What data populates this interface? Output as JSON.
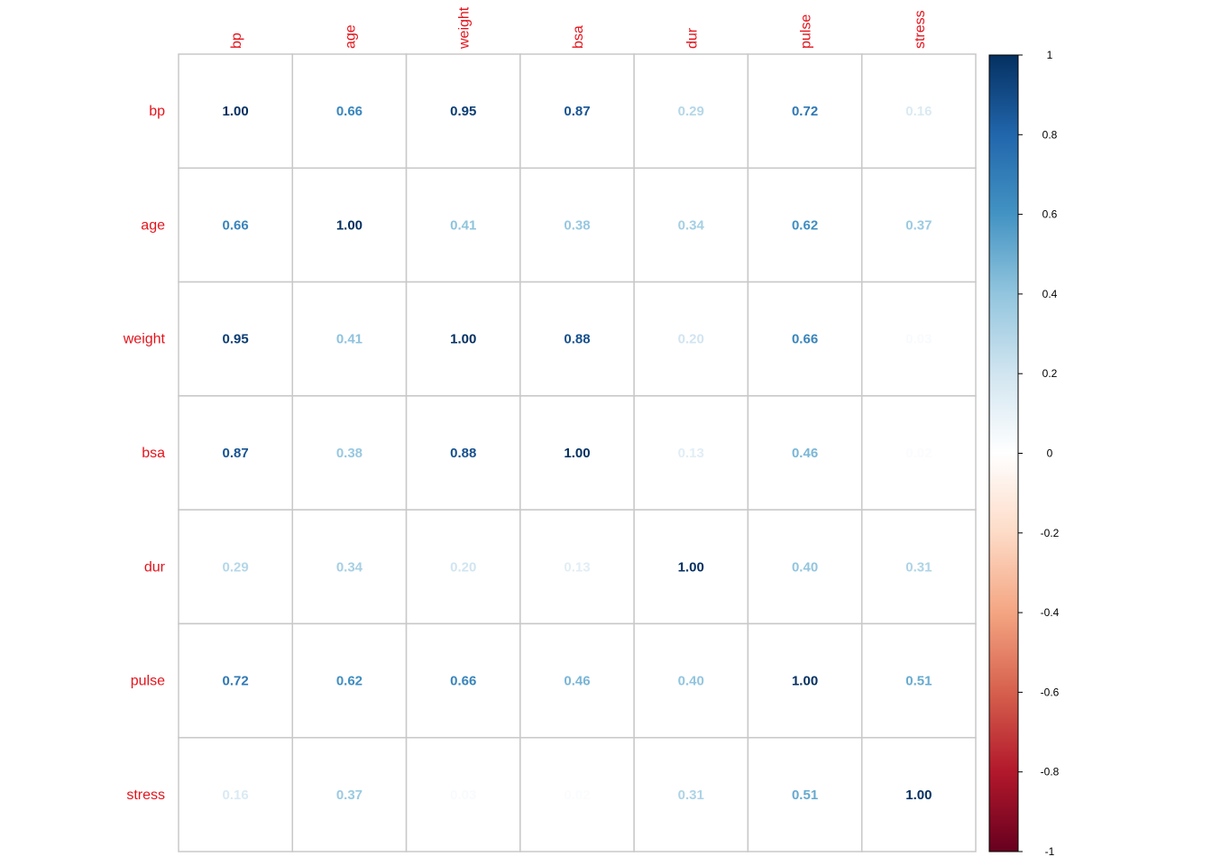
{
  "chart_data": {
    "type": "heatmap",
    "variables": [
      "bp",
      "age",
      "weight",
      "bsa",
      "dur",
      "pulse",
      "stress"
    ],
    "values": [
      [
        1.0,
        0.66,
        0.95,
        0.87,
        0.29,
        0.72,
        0.16
      ],
      [
        0.66,
        1.0,
        0.41,
        0.38,
        0.34,
        0.62,
        0.37
      ],
      [
        0.95,
        0.41,
        1.0,
        0.88,
        0.2,
        0.66,
        0.03
      ],
      [
        0.87,
        0.38,
        0.88,
        1.0,
        0.13,
        0.46,
        0.02
      ],
      [
        0.29,
        0.34,
        0.2,
        0.13,
        1.0,
        0.4,
        0.31
      ],
      [
        0.72,
        0.62,
        0.66,
        0.46,
        0.4,
        1.0,
        0.51
      ],
      [
        0.16,
        0.37,
        0.03,
        0.02,
        0.31,
        0.51,
        1.0
      ]
    ],
    "value_format": "0.00",
    "colorbar": {
      "range": [
        -1,
        1
      ],
      "ticks": [
        "1",
        "0.8",
        "0.6",
        "0.4",
        "0.2",
        "0",
        "-0.2",
        "-0.4",
        "-0.6",
        "-0.8",
        "-1"
      ],
      "stops": [
        "#67001f",
        "#b2182b",
        "#d6604d",
        "#f4a582",
        "#fddbc7",
        "#ffffff",
        "#d1e5f0",
        "#92c5de",
        "#4393c3",
        "#2166ac",
        "#053061"
      ]
    },
    "label_color": "#e4141c",
    "grid": true
  }
}
